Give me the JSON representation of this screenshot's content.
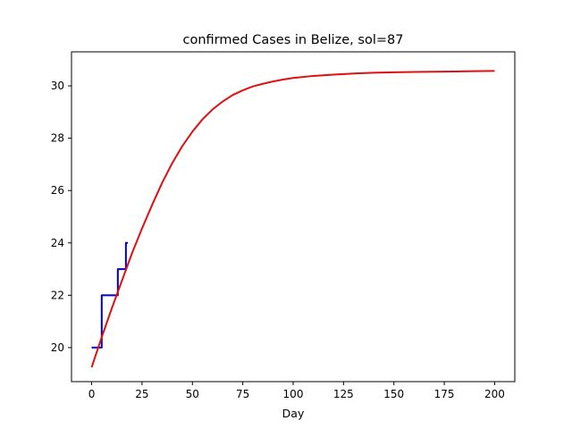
{
  "chart_data": {
    "type": "line",
    "title": "confirmed Cases in Belize, sol=87",
    "xlabel": "Day",
    "ylabel": "",
    "xlim": [
      -10,
      210
    ],
    "ylim": [
      18.7,
      31.3
    ],
    "grid": false,
    "xticks": [
      0,
      25,
      50,
      75,
      100,
      125,
      150,
      175,
      200
    ],
    "yticks": [
      20,
      22,
      24,
      26,
      28,
      30
    ],
    "xtick_labels": [
      "0",
      "25",
      "50",
      "75",
      "100",
      "125",
      "150",
      "175",
      "200"
    ],
    "ytick_labels": [
      "20",
      "22",
      "24",
      "26",
      "28",
      "30"
    ],
    "series": [
      {
        "color": "#0000cc",
        "style": "step",
        "x": [
          0,
          5,
          5,
          8,
          8,
          13,
          13,
          17,
          17,
          18
        ],
        "y": [
          20,
          20,
          22,
          22,
          22,
          22,
          23,
          23,
          24,
          24
        ]
      },
      {
        "color": "#dd1111",
        "style": "line",
        "x": [
          0,
          5,
          10,
          15,
          20,
          25,
          30,
          35,
          40,
          45,
          50,
          55,
          60,
          65,
          70,
          75,
          80,
          85,
          90,
          95,
          100,
          110,
          120,
          130,
          140,
          150,
          160,
          170,
          180,
          190,
          200
        ],
        "y": [
          19.25,
          20.4,
          21.5,
          22.55,
          23.6,
          24.55,
          25.45,
          26.3,
          27.05,
          27.7,
          28.25,
          28.72,
          29.1,
          29.4,
          29.65,
          29.83,
          29.98,
          30.08,
          30.17,
          30.24,
          30.3,
          30.38,
          30.43,
          30.47,
          30.5,
          30.52,
          30.53,
          30.54,
          30.55,
          30.56,
          30.57
        ]
      }
    ]
  }
}
